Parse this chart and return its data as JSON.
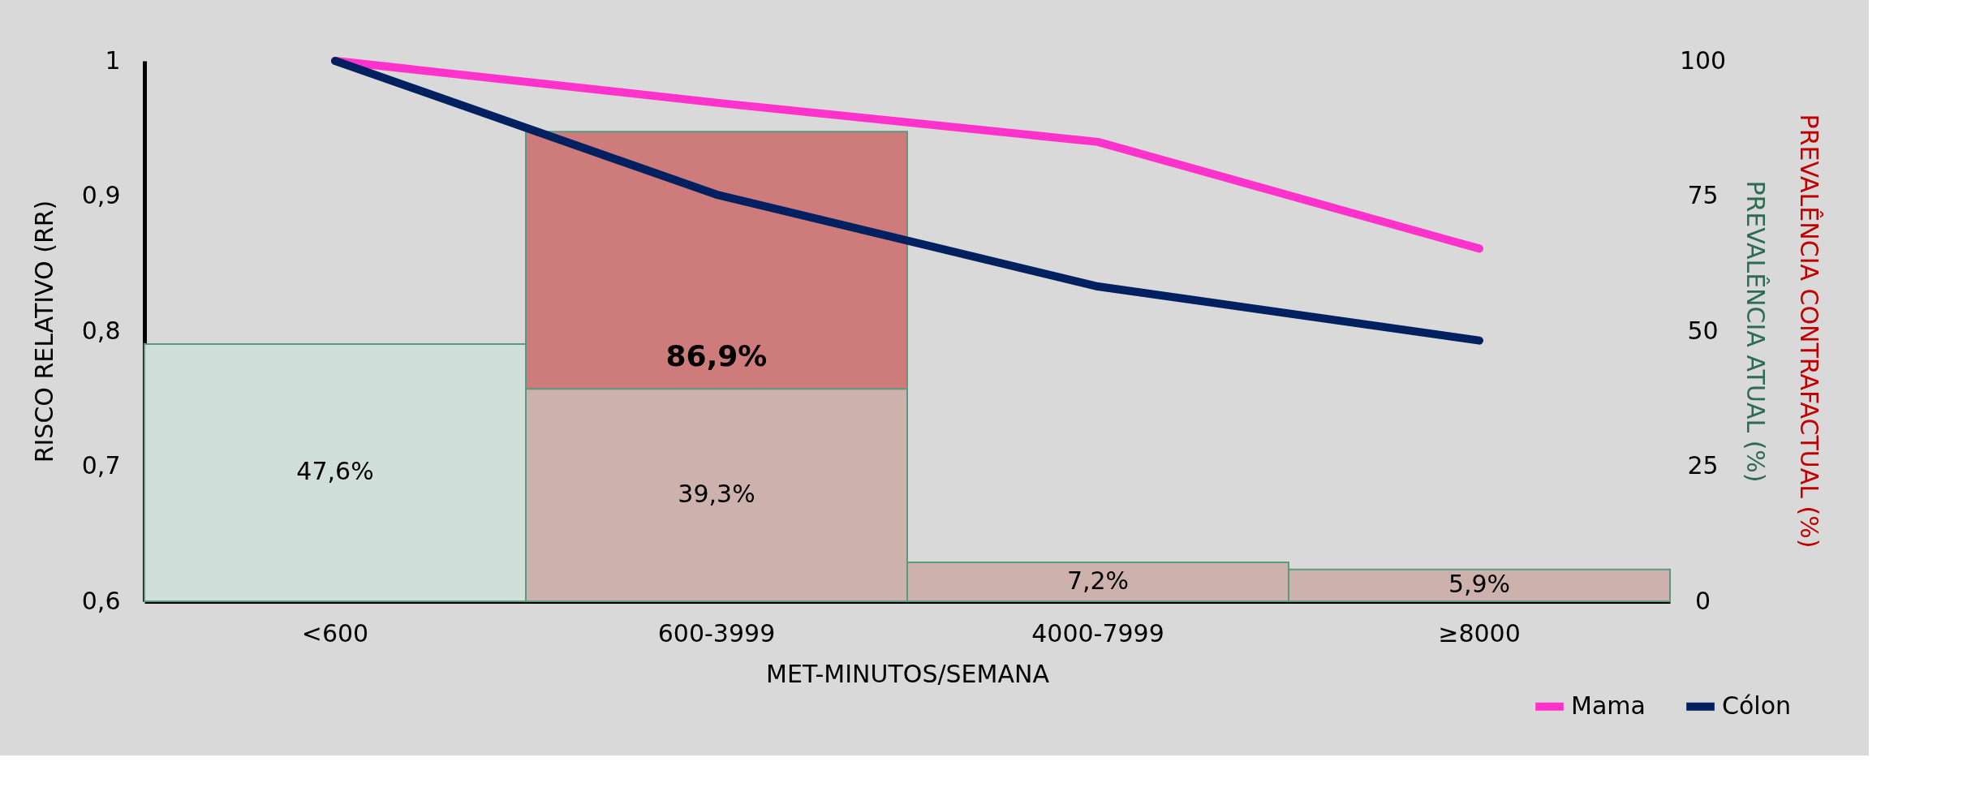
{
  "chart_data": {
    "type": "bar",
    "categories": [
      "<600",
      "600-3999",
      "4000-7999",
      "≥8000"
    ],
    "xlabel": "MET-MINUTOS/SEMANA",
    "ylabel": "RISCO RELATIVO (RR)",
    "y2label": [
      "PREVALÊNCIA CONTRAFACTUAL (%)",
      "PREVALÊNCIA ATUAL (%)"
    ],
    "ylim": [
      0.6,
      1
    ],
    "yticks": [
      {
        "value": 0.6,
        "label": "0,6"
      },
      {
        "value": 0.7,
        "label": "0,7"
      },
      {
        "value": 0.8,
        "label": "0,8"
      },
      {
        "value": 0.9,
        "label": "0,9"
      },
      {
        "value": 1,
        "label": "1"
      }
    ],
    "y2lim": [
      0,
      100
    ],
    "y2ticks": [
      0,
      25,
      50,
      75,
      100
    ],
    "legend": "bottom right",
    "series": [
      {
        "axis": "y2",
        "color": "#cd7b7b",
        "values": [
          null,
          86.9,
          null,
          null
        ],
        "value_labels": [
          null,
          "86,9%",
          null,
          null
        ]
      },
      {
        "axis": "y2",
        "colors": [
          "#d0dfd9",
          "#cdb1ad",
          "#cdb1ad",
          "#cdb1ad"
        ],
        "values": [
          47.6,
          39.3,
          7.2,
          5.9
        ],
        "value_labels": [
          "47,6%",
          "39,3%",
          "7,2%",
          "5,9%"
        ]
      },
      {
        "type": "line",
        "name": "Mama",
        "color": "#ff33cc",
        "values": [
          1.0,
          0.969,
          0.94,
          0.861
        ]
      },
      {
        "type": "line",
        "name": "Cólon",
        "color": "#002060",
        "values": [
          1.0,
          0.901,
          0.833,
          0.793
        ]
      }
    ]
  }
}
